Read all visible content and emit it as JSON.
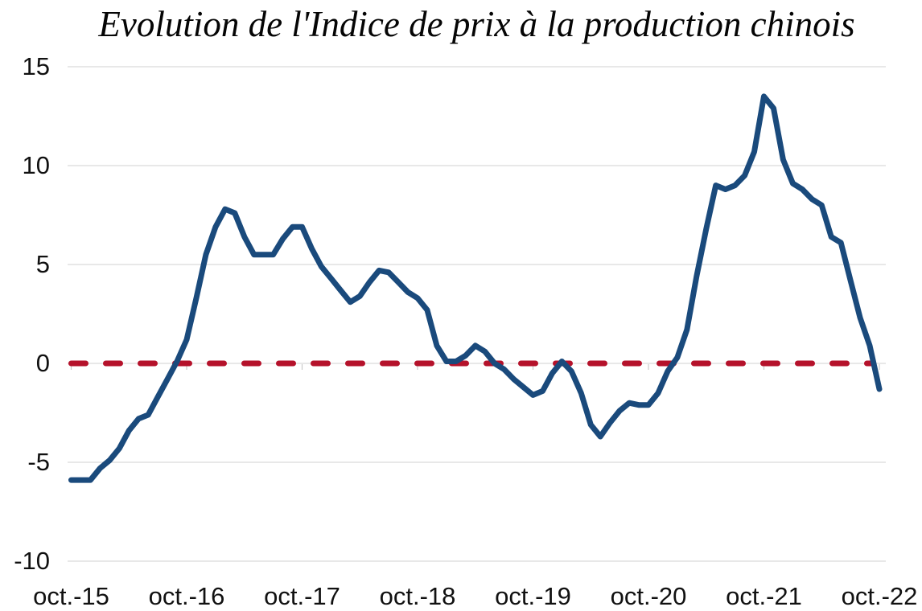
{
  "chart": {
    "title": "Evolution de l'Indice de prix à la production chinois"
  },
  "chart_data": {
    "type": "line",
    "title": "Evolution de l'Indice de prix à la production chinois",
    "xlabel": "",
    "ylabel": "",
    "x_unit": "month",
    "x_tick_labels": [
      "oct.-15",
      "oct.-16",
      "oct.-17",
      "oct.-18",
      "oct.-19",
      "oct.-20",
      "oct.-21",
      "oct.-22"
    ],
    "y_ticks": [
      15,
      10,
      5,
      0,
      -5,
      -10
    ],
    "ylim": [
      -10,
      15
    ],
    "grid": true,
    "legend": "none",
    "series": [
      {
        "color": "#1A4A7C",
        "values": [
          -5.9,
          -5.9,
          -5.9,
          -5.3,
          -4.9,
          -4.3,
          -3.4,
          -2.8,
          -2.6,
          -1.7,
          -0.8,
          0.1,
          1.2,
          3.3,
          5.5,
          6.9,
          7.8,
          7.6,
          6.4,
          5.5,
          5.5,
          5.5,
          6.3,
          6.9,
          6.9,
          5.8,
          4.9,
          4.3,
          3.7,
          3.1,
          3.4,
          4.1,
          4.7,
          4.6,
          4.1,
          3.6,
          3.3,
          2.7,
          0.9,
          0.1,
          0.1,
          0.4,
          0.9,
          0.6,
          0.0,
          -0.3,
          -0.8,
          -1.2,
          -1.6,
          -1.4,
          -0.5,
          0.1,
          -0.4,
          -1.5,
          -3.1,
          -3.7,
          -3.0,
          -2.4,
          -2.0,
          -2.1,
          -2.1,
          -1.5,
          -0.4,
          0.3,
          1.7,
          4.4,
          6.8,
          9.0,
          8.8,
          9.0,
          9.5,
          10.7,
          13.5,
          12.9,
          10.3,
          9.1,
          8.8,
          8.3,
          8.0,
          6.4,
          6.1,
          4.2,
          2.3,
          0.9,
          -1.3
        ]
      }
    ],
    "reference_line": {
      "y": 0,
      "color": "#B5122B",
      "style": "dashed"
    },
    "gridline_color": "#D9D9D9",
    "tick_color": "#C9C9C9",
    "text_color": "#111111",
    "background_color": "#FFFFFF"
  }
}
